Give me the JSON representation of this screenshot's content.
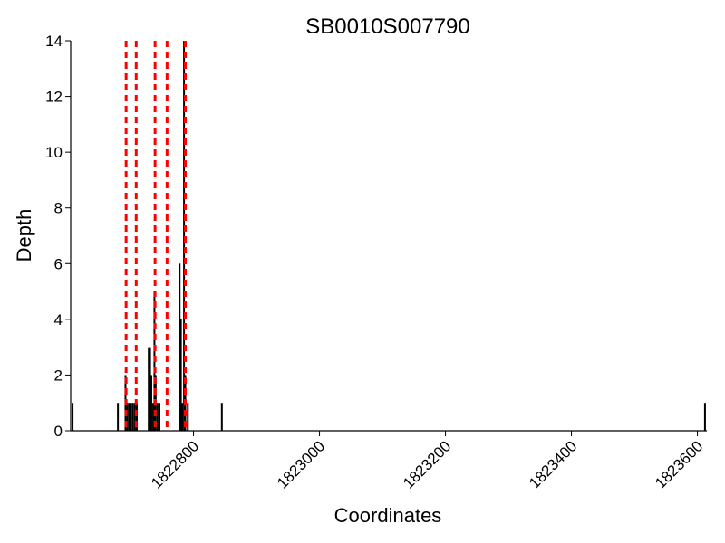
{
  "chart_data": {
    "type": "bar",
    "title": "SB0010S007790",
    "xlabel": "Coordinates",
    "ylabel": "Depth",
    "xlim": [
      1822605,
      1823615
    ],
    "ylim": [
      0,
      14
    ],
    "xticks": [
      1822800,
      1823000,
      1823200,
      1823400,
      1823600
    ],
    "xtick_labels": [
      "1822800",
      "1823000",
      "1823200",
      "1823400",
      "1823600"
    ],
    "yticks": [
      0,
      2,
      4,
      6,
      8,
      10,
      12,
      14
    ],
    "ytick_labels": [
      "0",
      "2",
      "4",
      "6",
      "8",
      "10",
      "12",
      "14"
    ],
    "grid": false,
    "legend": "none",
    "bar_color": "#000000",
    "vline_color": "#ff0000",
    "points": [
      {
        "x": 1822608,
        "y": 1
      },
      {
        "x": 1822680,
        "y": 1
      },
      {
        "x": 1822692,
        "y": 2
      },
      {
        "x": 1822695,
        "y": 1
      },
      {
        "x": 1822698,
        "y": 1
      },
      {
        "x": 1822701,
        "y": 1
      },
      {
        "x": 1822704,
        "y": 1
      },
      {
        "x": 1822707,
        "y": 1
      },
      {
        "x": 1822710,
        "y": 1
      },
      {
        "x": 1822729,
        "y": 3
      },
      {
        "x": 1822731,
        "y": 3
      },
      {
        "x": 1822733,
        "y": 2
      },
      {
        "x": 1822736,
        "y": 1
      },
      {
        "x": 1822738,
        "y": 5
      },
      {
        "x": 1822740,
        "y": 2
      },
      {
        "x": 1822743,
        "y": 1
      },
      {
        "x": 1822746,
        "y": 1
      },
      {
        "x": 1822778,
        "y": 6
      },
      {
        "x": 1822780,
        "y": 4
      },
      {
        "x": 1822782,
        "y": 1
      },
      {
        "x": 1822785,
        "y": 14
      },
      {
        "x": 1822787,
        "y": 2
      },
      {
        "x": 1822791,
        "y": 1
      },
      {
        "x": 1822845,
        "y": 1
      },
      {
        "x": 1823612,
        "y": 1
      }
    ],
    "vlines": [
      1822693,
      1822709,
      1822739,
      1822758,
      1822787
    ]
  }
}
